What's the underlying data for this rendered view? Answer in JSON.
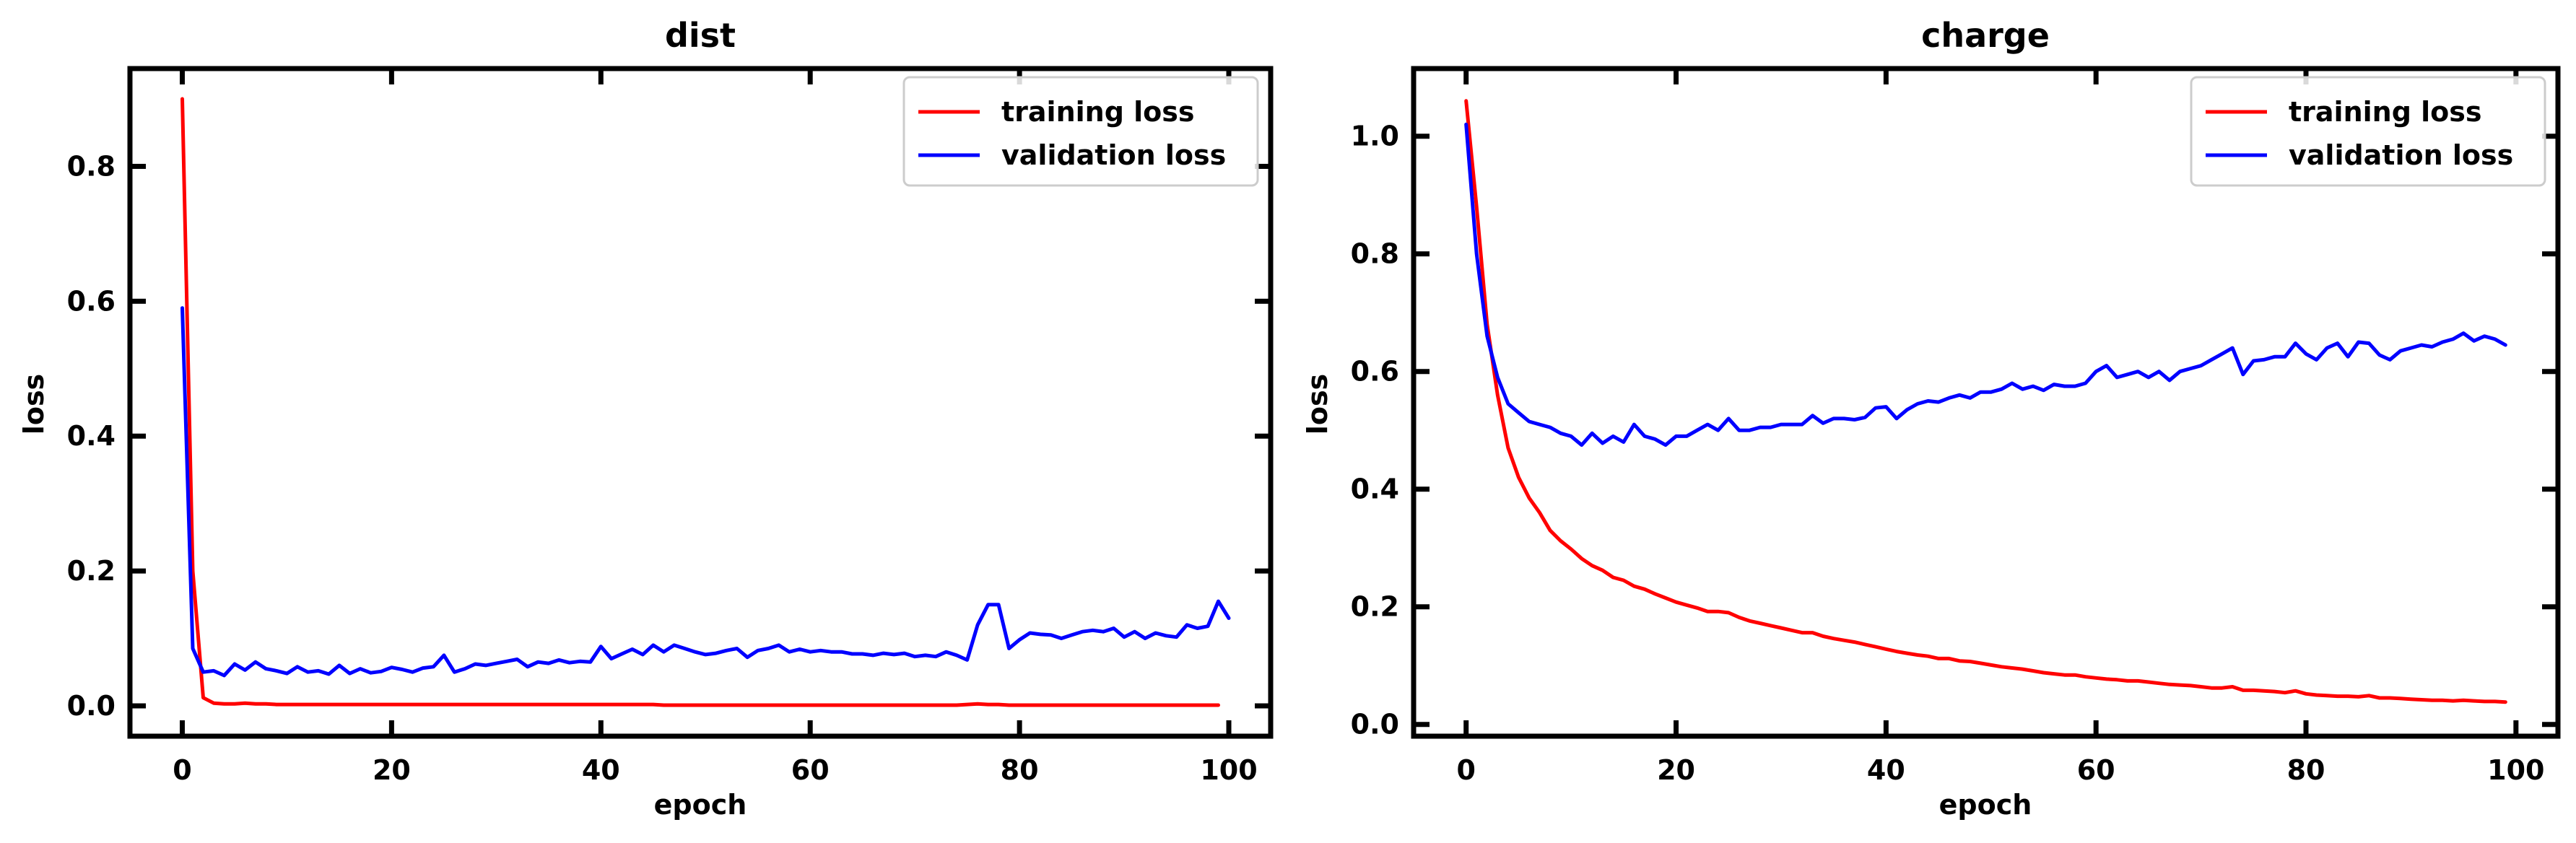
{
  "chart_data": [
    {
      "type": "line",
      "title": "dist",
      "xlabel": "epoch",
      "ylabel": "loss",
      "xlim": [
        -5,
        104
      ],
      "ylim": [
        -0.045,
        0.945
      ],
      "xticks": [
        0,
        20,
        40,
        60,
        80,
        100
      ],
      "yticks": [
        0.0,
        0.2,
        0.4,
        0.6,
        0.8
      ],
      "ytick_labels": [
        "0.0",
        "0.2",
        "0.4",
        "0.6",
        "0.8"
      ],
      "grid": false,
      "legend": "top-right",
      "series": [
        {
          "name": "training loss",
          "color": "#ff0000",
          "x_start": 0,
          "values": [
            0.9,
            0.2,
            0.012,
            0.004,
            0.003,
            0.003,
            0.004,
            0.003,
            0.003,
            0.002,
            0.002,
            0.002,
            0.002,
            0.002,
            0.002,
            0.002,
            0.002,
            0.002,
            0.002,
            0.002,
            0.002,
            0.002,
            0.002,
            0.002,
            0.002,
            0.002,
            0.002,
            0.002,
            0.002,
            0.002,
            0.002,
            0.002,
            0.002,
            0.002,
            0.002,
            0.002,
            0.002,
            0.002,
            0.002,
            0.002,
            0.002,
            0.002,
            0.002,
            0.002,
            0.002,
            0.002,
            0.001,
            0.001,
            0.001,
            0.001,
            0.001,
            0.001,
            0.001,
            0.001,
            0.001,
            0.001,
            0.001,
            0.001,
            0.001,
            0.001,
            0.001,
            0.001,
            0.001,
            0.001,
            0.001,
            0.001,
            0.001,
            0.001,
            0.001,
            0.001,
            0.001,
            0.001,
            0.001,
            0.001,
            0.001,
            0.002,
            0.003,
            0.002,
            0.002,
            0.001,
            0.001,
            0.001,
            0.001,
            0.001,
            0.001,
            0.001,
            0.001,
            0.001,
            0.001,
            0.001,
            0.001,
            0.001,
            0.001,
            0.001,
            0.001,
            0.001,
            0.001,
            0.001,
            0.001,
            0.001
          ]
        },
        {
          "name": "validation loss",
          "color": "#0000ff",
          "x_start": 0,
          "values": [
            0.59,
            0.085,
            0.05,
            0.052,
            0.045,
            0.062,
            0.053,
            0.065,
            0.055,
            0.052,
            0.048,
            0.058,
            0.05,
            0.052,
            0.047,
            0.06,
            0.048,
            0.055,
            0.049,
            0.051,
            0.057,
            0.054,
            0.05,
            0.056,
            0.058,
            0.075,
            0.05,
            0.055,
            0.062,
            0.06,
            0.063,
            0.066,
            0.069,
            0.058,
            0.065,
            0.063,
            0.068,
            0.064,
            0.066,
            0.065,
            0.088,
            0.07,
            0.077,
            0.084,
            0.076,
            0.09,
            0.08,
            0.09,
            0.085,
            0.08,
            0.076,
            0.078,
            0.082,
            0.085,
            0.072,
            0.082,
            0.085,
            0.09,
            0.08,
            0.084,
            0.08,
            0.082,
            0.08,
            0.08,
            0.077,
            0.077,
            0.075,
            0.078,
            0.076,
            0.078,
            0.073,
            0.075,
            0.073,
            0.08,
            0.075,
            0.068,
            0.12,
            0.15,
            0.15,
            0.085,
            0.098,
            0.108,
            0.106,
            0.105,
            0.1,
            0.105,
            0.11,
            0.112,
            0.11,
            0.115,
            0.102,
            0.11,
            0.1,
            0.108,
            0.104,
            0.102,
            0.12,
            0.115,
            0.118,
            0.155,
            0.13
          ]
        }
      ]
    },
    {
      "type": "line",
      "title": "charge",
      "xlabel": "epoch",
      "ylabel": "loss",
      "xlim": [
        -5,
        104
      ],
      "ylim": [
        -0.02,
        1.115
      ],
      "xticks": [
        0,
        20,
        40,
        60,
        80,
        100
      ],
      "yticks": [
        0.0,
        0.2,
        0.4,
        0.6,
        0.8,
        1.0
      ],
      "ytick_labels": [
        "0.0",
        "0.2",
        "0.4",
        "0.6",
        "0.8",
        "1.0"
      ],
      "grid": false,
      "legend": "top-right",
      "series": [
        {
          "name": "training loss",
          "color": "#ff0000",
          "x_start": 0,
          "values": [
            1.06,
            0.88,
            0.68,
            0.56,
            0.47,
            0.42,
            0.385,
            0.36,
            0.33,
            0.312,
            0.298,
            0.282,
            0.27,
            0.262,
            0.25,
            0.245,
            0.235,
            0.23,
            0.222,
            0.215,
            0.208,
            0.203,
            0.198,
            0.192,
            0.192,
            0.19,
            0.182,
            0.176,
            0.172,
            0.168,
            0.164,
            0.16,
            0.156,
            0.156,
            0.15,
            0.146,
            0.143,
            0.14,
            0.136,
            0.132,
            0.128,
            0.124,
            0.121,
            0.118,
            0.116,
            0.112,
            0.112,
            0.108,
            0.107,
            0.104,
            0.101,
            0.098,
            0.096,
            0.094,
            0.091,
            0.088,
            0.086,
            0.084,
            0.084,
            0.081,
            0.079,
            0.077,
            0.076,
            0.074,
            0.074,
            0.072,
            0.07,
            0.068,
            0.067,
            0.066,
            0.064,
            0.062,
            0.062,
            0.064,
            0.058,
            0.058,
            0.057,
            0.056,
            0.054,
            0.057,
            0.052,
            0.05,
            0.049,
            0.048,
            0.048,
            0.047,
            0.049,
            0.045,
            0.045,
            0.044,
            0.043,
            0.042,
            0.041,
            0.041,
            0.04,
            0.041,
            0.04,
            0.039,
            0.039,
            0.038
          ]
        },
        {
          "name": "validation loss",
          "color": "#0000ff",
          "x_start": 0,
          "values": [
            1.02,
            0.8,
            0.66,
            0.59,
            0.545,
            0.53,
            0.515,
            0.51,
            0.505,
            0.495,
            0.49,
            0.475,
            0.495,
            0.478,
            0.49,
            0.48,
            0.51,
            0.49,
            0.485,
            0.475,
            0.49,
            0.49,
            0.5,
            0.51,
            0.5,
            0.52,
            0.5,
            0.5,
            0.505,
            0.505,
            0.51,
            0.51,
            0.51,
            0.525,
            0.512,
            0.52,
            0.52,
            0.518,
            0.522,
            0.538,
            0.54,
            0.52,
            0.535,
            0.545,
            0.55,
            0.548,
            0.555,
            0.56,
            0.555,
            0.565,
            0.565,
            0.57,
            0.58,
            0.57,
            0.575,
            0.568,
            0.578,
            0.575,
            0.575,
            0.58,
            0.6,
            0.61,
            0.59,
            0.595,
            0.6,
            0.59,
            0.6,
            0.585,
            0.6,
            0.605,
            0.61,
            0.62,
            0.63,
            0.64,
            0.595,
            0.618,
            0.62,
            0.625,
            0.625,
            0.648,
            0.63,
            0.62,
            0.64,
            0.648,
            0.625,
            0.65,
            0.648,
            0.628,
            0.62,
            0.635,
            0.64,
            0.645,
            0.642,
            0.65,
            0.655,
            0.665,
            0.652,
            0.66,
            0.655,
            0.645
          ]
        }
      ]
    }
  ]
}
